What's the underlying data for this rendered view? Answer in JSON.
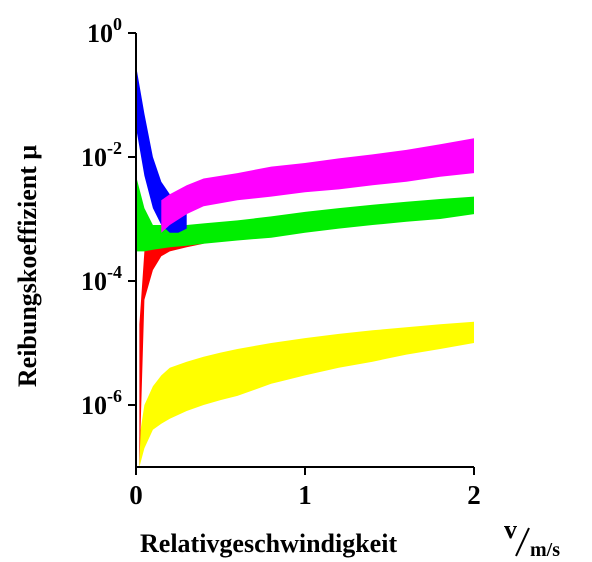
{
  "chart_data": {
    "type": "area",
    "xlabel": "Relativgeschwindigkeit",
    "xunit": {
      "numerator": "v",
      "denominator": "m/s"
    },
    "ylabel": "Reibungskoeffizient  μ",
    "xlim": [
      0,
      2
    ],
    "ylim": [
      1e-07,
      1
    ],
    "yscale": "log",
    "xticks": [
      {
        "value": 0,
        "label": "0"
      },
      {
        "value": 1,
        "label": "1"
      },
      {
        "value": 2,
        "label": "2"
      }
    ],
    "yticks": [
      {
        "value": 1,
        "base": "10",
        "exp": "0"
      },
      {
        "value": 0.01,
        "base": "10",
        "exp": "-2"
      },
      {
        "value": 0.0001,
        "base": "10",
        "exp": "-4"
      },
      {
        "value": 1e-06,
        "base": "10",
        "exp": "-6"
      }
    ],
    "series": [
      {
        "color": "#ffff00",
        "x": [
          0.02,
          0.05,
          0.1,
          0.15,
          0.2,
          0.3,
          0.4,
          0.5,
          0.6,
          0.8,
          1.0,
          1.2,
          1.4,
          1.6,
          1.8,
          2.0
        ],
        "lower": [
          1e-07,
          2e-07,
          4e-07,
          5e-07,
          6e-07,
          8e-07,
          1e-06,
          1.2e-06,
          1.4e-06,
          2.2e-06,
          3e-06,
          4e-06,
          5e-06,
          6.5e-06,
          8e-06,
          1e-05
        ],
        "upper": [
          3e-07,
          1e-06,
          2e-06,
          3e-06,
          4e-06,
          5e-06,
          6e-06,
          7e-06,
          8e-06,
          1e-05,
          1.2e-05,
          1.4e-05,
          1.6e-05,
          1.8e-05,
          2e-05,
          2.2e-05
        ]
      },
      {
        "color": "#ff0000",
        "x": [
          0.02,
          0.05,
          0.1,
          0.15,
          0.2,
          0.3,
          0.4
        ],
        "lower": [
          1e-07,
          5e-05,
          0.00015,
          0.00025,
          0.0003,
          0.00035,
          0.0004
        ],
        "upper": [
          2e-05,
          0.0003,
          0.0006,
          0.0007,
          0.0007,
          0.0007,
          0.0007
        ]
      },
      {
        "color": "#00ee00",
        "x": [
          0.0,
          0.05,
          0.1,
          0.2,
          0.3,
          0.4,
          0.6,
          0.8,
          1.0,
          1.2,
          1.4,
          1.6,
          1.8,
          2.0
        ],
        "lower": [
          0.0003,
          0.0003,
          0.00032,
          0.00035,
          0.00037,
          0.0004,
          0.00045,
          0.0005,
          0.0006,
          0.0007,
          0.0008,
          0.0009,
          0.001,
          0.0012
        ],
        "upper": [
          0.005,
          0.0015,
          0.0008,
          0.0008,
          0.0008,
          0.00085,
          0.00095,
          0.0011,
          0.0013,
          0.0015,
          0.0017,
          0.0019,
          0.0021,
          0.0023
        ]
      },
      {
        "color": "#0000ff",
        "x": [
          0.0,
          0.05,
          0.1,
          0.15,
          0.2,
          0.25,
          0.3
        ],
        "lower": [
          0.03,
          0.005,
          0.0015,
          0.0008,
          0.0006,
          0.0006,
          0.0007
        ],
        "upper": [
          0.3,
          0.05,
          0.01,
          0.004,
          0.0025,
          0.002,
          0.0022
        ]
      },
      {
        "color": "#ff00ff",
        "x": [
          0.15,
          0.2,
          0.3,
          0.4,
          0.6,
          0.8,
          1.0,
          1.2,
          1.4,
          1.6,
          1.8,
          2.0
        ],
        "lower": [
          0.0006,
          0.0008,
          0.0012,
          0.0016,
          0.002,
          0.0023,
          0.0027,
          0.003,
          0.0035,
          0.004,
          0.0048,
          0.0055
        ],
        "upper": [
          0.002,
          0.0025,
          0.0035,
          0.0045,
          0.0055,
          0.007,
          0.008,
          0.0095,
          0.011,
          0.013,
          0.016,
          0.02
        ]
      }
    ]
  }
}
